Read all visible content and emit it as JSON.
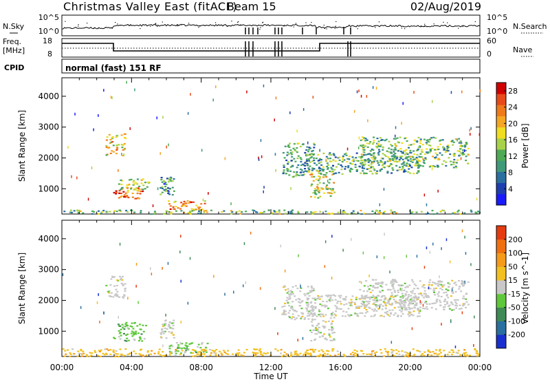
{
  "header": {
    "title": "Christmas Valley East (fitACF)",
    "beam": "Beam 15",
    "date": "02/Aug/2019"
  },
  "mini_panels": {
    "nsky": {
      "label": "N.Sky",
      "tick_top": "10^5",
      "tick_bottom": "10^0"
    },
    "nsearch": {
      "label": "N.Search",
      "tick_top": "10^5",
      "tick_bottom": "10^0"
    },
    "freq": {
      "label_line1": "Freq.",
      "label_line2": "[MHz]",
      "tick_top": "18",
      "tick_bottom": "8"
    },
    "nave": {
      "label": "Nave",
      "tick_top": "60",
      "tick_bottom": "0"
    },
    "cpid": {
      "label": "CPID",
      "value": "normal (fast) 151 RF"
    }
  },
  "colors": {
    "power": [
      "#1a1aff",
      "#1d3fb0",
      "#2a6fa0",
      "#3f9a7a",
      "#4faa55",
      "#a8d24a",
      "#f0dc20",
      "#f5a623",
      "#f07a1a",
      "#e84a1a",
      "#d00000"
    ],
    "velocity": [
      "#1a2fd0",
      "#2a6fa0",
      "#3f8a55",
      "#5fc83a",
      "#c8c8c8",
      "#f2c020",
      "#f59a1a",
      "#f07010",
      "#e63b10"
    ]
  },
  "chart_data": [
    {
      "type": "heatmap",
      "title": "",
      "xlabel": "Time UT",
      "ylabel": "Slant Range [km]",
      "x_ticks": [
        "00:00",
        "04:00",
        "08:00",
        "12:00",
        "16:00",
        "20:00",
        "00:00"
      ],
      "y_ticks": [
        1000,
        2000,
        3000,
        4000
      ],
      "ylim": [
        180,
        4600
      ],
      "xlim_hours": [
        0,
        24
      ],
      "colorbar": {
        "label": "Power [dB]",
        "ticks": [
          4,
          8,
          12,
          16,
          20,
          24,
          28
        ],
        "range": [
          0,
          30
        ]
      },
      "regions": [
        {
          "t0": 2.5,
          "t1": 3.6,
          "r0": 2100,
          "r1": 2800,
          "level": 0.62
        },
        {
          "t0": 2.9,
          "t1": 4.6,
          "r0": 700,
          "r1": 1050,
          "level": 0.78
        },
        {
          "t0": 3.2,
          "t1": 5.0,
          "r0": 1000,
          "r1": 1350,
          "level": 0.5
        },
        {
          "t0": 5.6,
          "t1": 6.4,
          "r0": 800,
          "r1": 1400,
          "level": 0.3
        },
        {
          "t0": 6.0,
          "t1": 8.2,
          "r0": 300,
          "r1": 650,
          "level": 0.72
        },
        {
          "t0": 12.6,
          "t1": 14.5,
          "r0": 1400,
          "r1": 2500,
          "level": 0.35
        },
        {
          "t0": 14.2,
          "t1": 15.6,
          "r0": 700,
          "r1": 1600,
          "level": 0.55
        },
        {
          "t0": 14.0,
          "t1": 20.5,
          "r0": 1500,
          "r1": 2200,
          "level": 0.38
        },
        {
          "t0": 17.0,
          "t1": 23.3,
          "r0": 1700,
          "r1": 2700,
          "level": 0.42
        },
        {
          "t0": 0.0,
          "t1": 24.0,
          "r0": 200,
          "r1": 330,
          "level": 0.45
        }
      ]
    },
    {
      "type": "heatmap",
      "title": "",
      "xlabel": "Time UT",
      "ylabel": "Slant Range [km]",
      "x_ticks": [
        "00:00",
        "04:00",
        "08:00",
        "12:00",
        "16:00",
        "20:00",
        "00:00"
      ],
      "y_ticks": [
        1000,
        2000,
        3000,
        4000
      ],
      "ylim": [
        180,
        4600
      ],
      "xlim_hours": [
        0,
        24
      ],
      "colorbar": {
        "label": "Velocity [m s^-1]",
        "ticks": [
          "200",
          "100",
          "50",
          "15",
          "-15",
          "-50",
          "-100",
          "-200"
        ]
      },
      "regions": [
        {
          "t0": 2.5,
          "t1": 3.6,
          "r0": 2100,
          "r1": 2800,
          "cls": 4
        },
        {
          "t0": 2.9,
          "t1": 4.8,
          "r0": 700,
          "r1": 1300,
          "cls": 3
        },
        {
          "t0": 5.6,
          "t1": 6.4,
          "r0": 800,
          "r1": 1400,
          "cls": 4
        },
        {
          "t0": 6.0,
          "t1": 8.4,
          "r0": 300,
          "r1": 650,
          "cls": 3
        },
        {
          "t0": 12.6,
          "t1": 14.5,
          "r0": 1400,
          "r1": 2500,
          "cls": 4
        },
        {
          "t0": 14.2,
          "t1": 15.6,
          "r0": 700,
          "r1": 1600,
          "cls": 4
        },
        {
          "t0": 14.0,
          "t1": 20.5,
          "r0": 1500,
          "r1": 2200,
          "cls": 4
        },
        {
          "t0": 17.0,
          "t1": 23.3,
          "r0": 1700,
          "r1": 2700,
          "cls": 4
        },
        {
          "t0": 0.0,
          "t1": 24.0,
          "r0": 200,
          "r1": 450,
          "cls": 5
        }
      ]
    }
  ]
}
